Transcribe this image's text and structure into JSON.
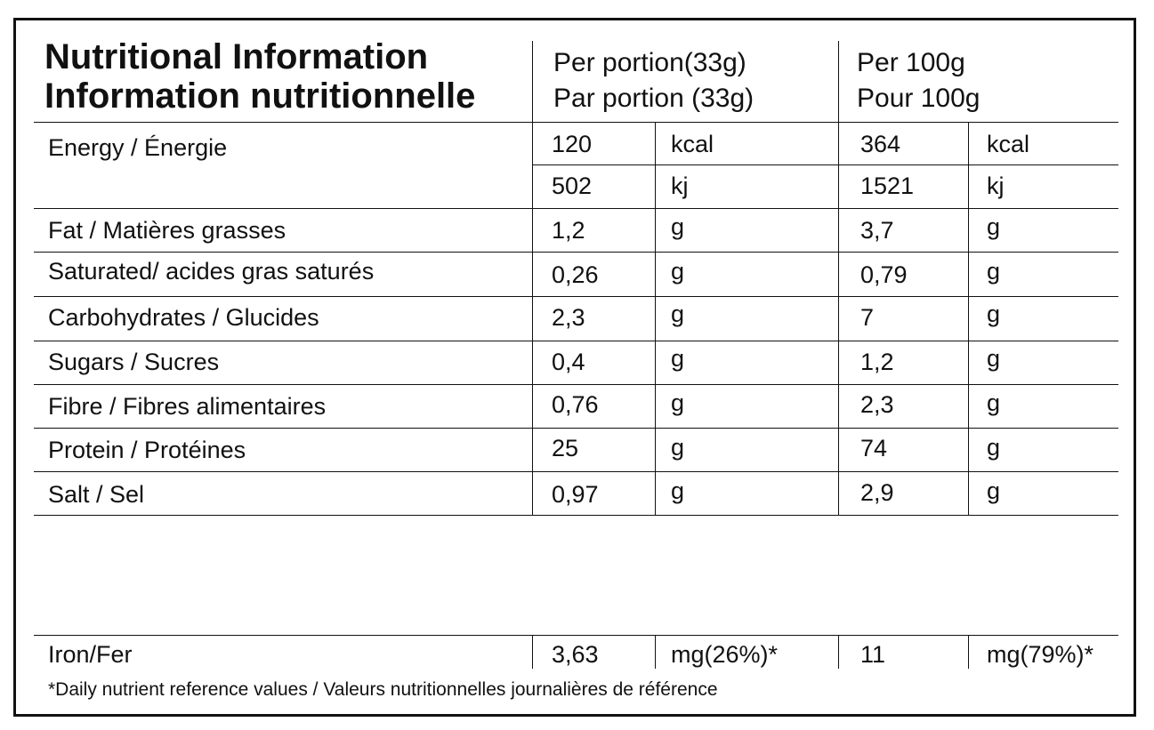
{
  "header": {
    "title_en": "Nutritional Information",
    "title_fr": "Information nutritionnelle",
    "per_portion_en": "Per portion(33g)",
    "per_portion_fr": "Par portion (33g)",
    "per100_en": "Per 100g",
    "per100_fr": "Pour 100g"
  },
  "energy": {
    "label": "Energy / Énergie",
    "kcal": {
      "portion": "120",
      "unit": "kcal",
      "per100": "364",
      "unit100": "kcal"
    },
    "kj": {
      "portion": "502",
      "unit": "kj",
      "per100": "1521",
      "unit100": "kj"
    }
  },
  "rows": [
    {
      "label": "Fat / Matières grasses",
      "portion": "1,2",
      "unit": "g",
      "per100": "3,7",
      "unit100": "g"
    },
    {
      "label": "Saturated/ acides gras saturés",
      "portion": "0,26",
      "unit": "g",
      "per100": "0,79",
      "unit100": "g"
    },
    {
      "label": "Carbohydrates / Glucides",
      "portion": "2,3",
      "unit": "g",
      "per100": "7",
      "unit100": "g"
    },
    {
      "label": "Sugars / Sucres",
      "portion": "0,4",
      "unit": "g",
      "per100": "1,2",
      "unit100": "g"
    },
    {
      "label": "Fibre / Fibres alimentaires",
      "portion": "0,76",
      "unit": "g",
      "per100": "2,3",
      "unit100": "g"
    },
    {
      "label": "Protein / Protéines",
      "portion": "25",
      "unit": "g",
      "per100": "74",
      "unit100": "g"
    },
    {
      "label": "Salt / Sel",
      "portion": "0,97",
      "unit": "g",
      "per100": "2,9",
      "unit100": "g"
    }
  ],
  "iron": {
    "label": "Iron/Fer",
    "portion": "3,63",
    "unit": "mg(26%)*",
    "per100": "11",
    "unit100": "mg(79%)*"
  },
  "footnote": "*Daily nutrient reference values / Valeurs nutritionnelles journalières de référence"
}
